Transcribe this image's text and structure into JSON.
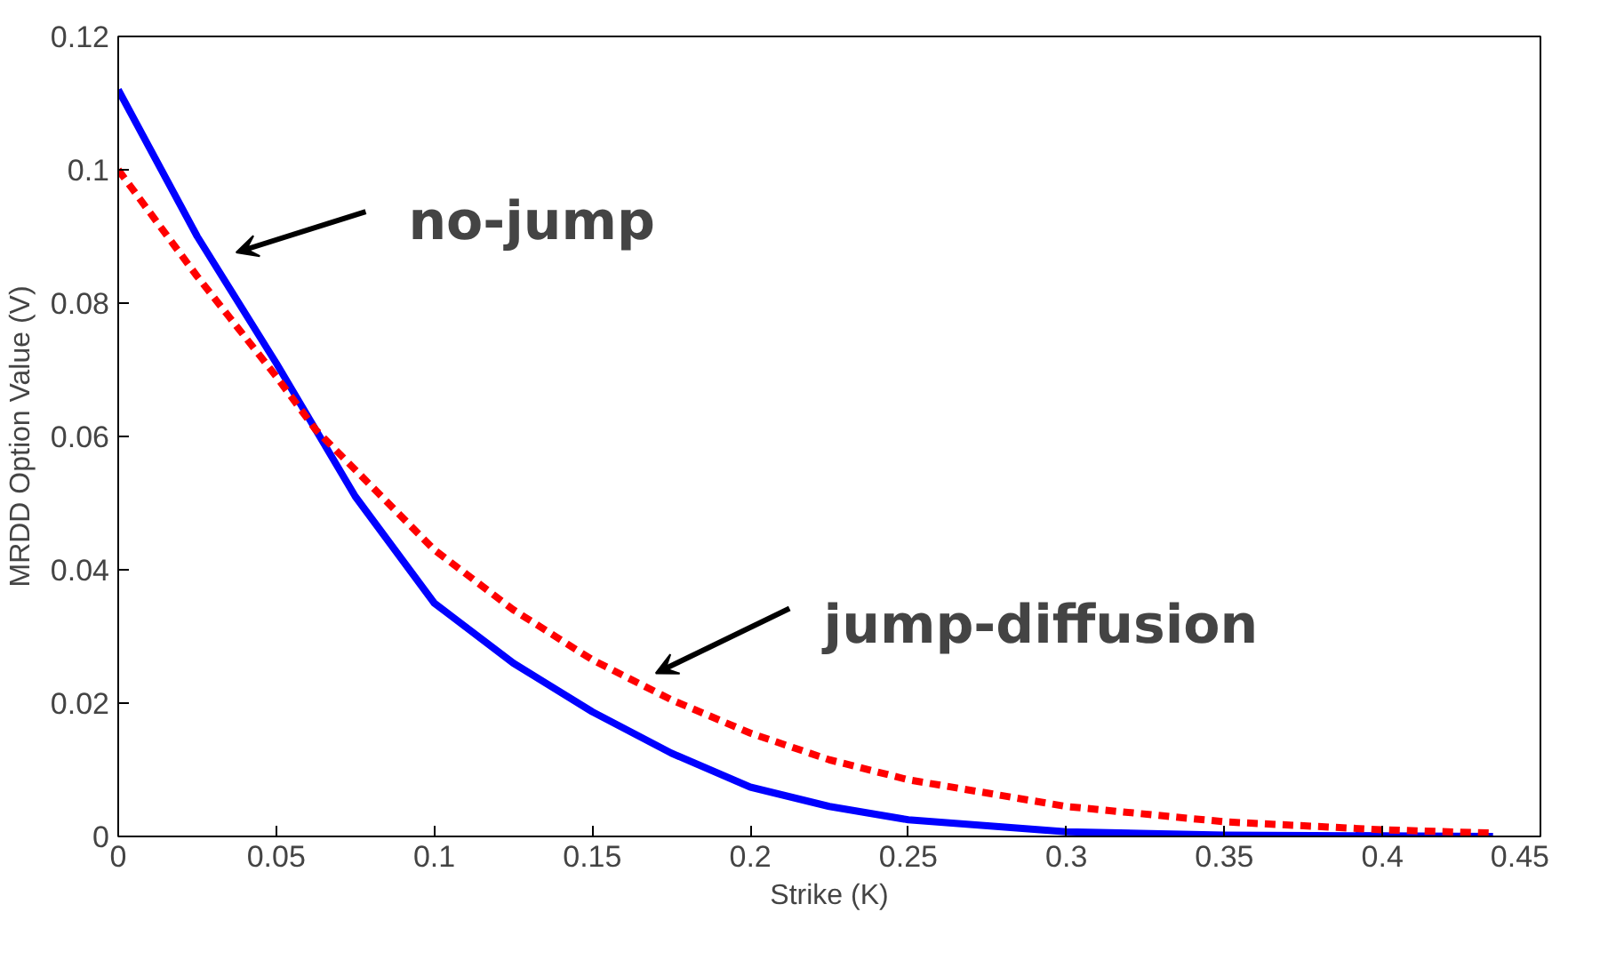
{
  "chart_data": {
    "type": "line",
    "xlabel": "Strike (K)",
    "ylabel": "MRDD Option Value (V)",
    "xlim": [
      0,
      0.45
    ],
    "ylim": [
      0,
      0.12
    ],
    "xticks": [
      0,
      0.05,
      0.1,
      0.15,
      0.2,
      0.25,
      0.3,
      0.35,
      0.4,
      0.45
    ],
    "yticks": [
      0,
      0.02,
      0.04,
      0.06,
      0.08,
      0.1,
      0.12
    ],
    "grid": false,
    "series": [
      {
        "color": "#0000ff",
        "line_style": "solid",
        "x": [
          0,
          0.025,
          0.05,
          0.0625,
          0.075,
          0.1,
          0.125,
          0.15,
          0.175,
          0.2,
          0.225,
          0.25,
          0.3,
          0.35,
          0.4,
          0.435
        ],
        "values": [
          0.112,
          0.09,
          0.071,
          0.061,
          0.051,
          0.035,
          0.026,
          0.0187,
          0.0125,
          0.0074,
          0.0045,
          0.0025,
          0.0007,
          0.0002,
          0.0001,
          0
        ]
      },
      {
        "color": "#ff0000",
        "line_style": "dashed",
        "x": [
          0,
          0.025,
          0.05,
          0.0625,
          0.075,
          0.1,
          0.125,
          0.15,
          0.175,
          0.2,
          0.225,
          0.25,
          0.3,
          0.35,
          0.4,
          0.435
        ],
        "values": [
          0.1,
          0.084,
          0.069,
          0.061,
          0.055,
          0.043,
          0.034,
          0.0265,
          0.0205,
          0.0155,
          0.0115,
          0.0085,
          0.0045,
          0.0022,
          0.001,
          0.0005
        ]
      }
    ],
    "annotations": [
      "no-jump",
      "jump-diffusion"
    ]
  }
}
